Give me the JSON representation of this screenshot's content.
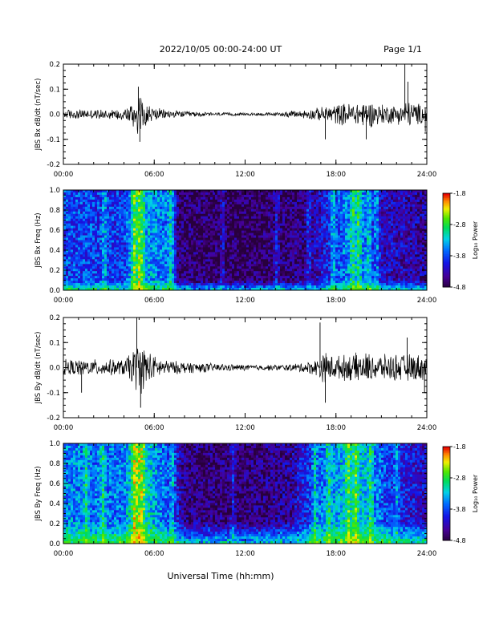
{
  "header": {
    "title": "2022/10/05  00:00-24:00 UT",
    "page": "Page 1/1"
  },
  "footer": {
    "xlabel": "Universal Time (hh:mm)"
  },
  "colorbar": {
    "label": "Log₁₀ Power",
    "ticks": [
      "-1.8",
      "-2.8",
      "-3.8",
      "-4.8"
    ],
    "range": [
      -4.8,
      -1.8
    ],
    "scale": "rainbow (purple=low, red=high)"
  },
  "chart_data": [
    {
      "type": "line",
      "ylabel": "JBS Bx dB/dt (nT/sec)",
      "xlim": [
        0,
        24
      ],
      "x_tick_labels": [
        "00:00",
        "06:00",
        "12:00",
        "18:00",
        "24:00"
      ],
      "ylim": [
        -0.2,
        0.2
      ],
      "y_tick_labels": [
        "0.2",
        "0.1",
        "0.0",
        "-0.1",
        "-0.2"
      ],
      "series": [
        {
          "color": "#000000",
          "envelope": {
            "hours": [
              0,
              2,
              4,
              4.6,
              5.0,
              5.3,
              5.8,
              6.5,
              8,
              10,
              12,
              14,
              16,
              17,
              18,
              19,
              20,
              21,
              22,
              22.7,
              23.2,
              24
            ],
            "amplitude": [
              0.022,
              0.02,
              0.025,
              0.06,
              0.1,
              0.07,
              0.035,
              0.022,
              0.013,
              0.008,
              0.006,
              0.008,
              0.02,
              0.03,
              0.045,
              0.05,
              0.06,
              0.045,
              0.04,
              0.06,
              0.05,
              0.04
            ]
          },
          "spikes": [
            {
              "hour": 4.95,
              "value": 0.11
            },
            {
              "hour": 5.05,
              "value": -0.11
            },
            {
              "hour": 22.55,
              "value": 0.21
            },
            {
              "hour": 22.75,
              "value": 0.13
            },
            {
              "hour": 20.0,
              "value": -0.1
            },
            {
              "hour": 17.3,
              "value": -0.1
            },
            {
              "hour": 23.9,
              "value": -0.07
            }
          ]
        }
      ]
    },
    {
      "type": "heatmap",
      "ylabel": "JBS Bx Freq (Hz)",
      "xlim": [
        0,
        24
      ],
      "x_tick_labels": [
        "00:00",
        "06:00",
        "12:00",
        "18:00",
        "24:00"
      ],
      "ylim": [
        0,
        1.0
      ],
      "y_tick_labels": [
        "1.0",
        "0.8",
        "0.6",
        "0.4",
        "0.2",
        "0.0"
      ],
      "z_unit": "Log10 Power",
      "zlim": [
        -4.8,
        -1.8
      ],
      "background_level": {
        "hours": [
          0,
          4,
          4.6,
          5.0,
          5.5,
          7.2,
          7.6,
          12,
          16,
          17.5,
          18.5,
          19.3,
          20,
          21,
          24
        ],
        "level": [
          -3.8,
          -3.9,
          -3.2,
          -3.1,
          -3.4,
          -3.7,
          -4.6,
          -4.7,
          -4.5,
          -4.0,
          -3.6,
          -3.4,
          -3.6,
          -4.2,
          -4.4
        ]
      },
      "low_frequency_band": {
        "frequency_max": 0.1,
        "peak_level": -1.9
      },
      "bright_columns": [
        2.7,
        4.7,
        5.0,
        5.2,
        7.1,
        10.5,
        14.1,
        16.2,
        17.8,
        19.1,
        19.5,
        20.2,
        20.7
      ]
    },
    {
      "type": "line",
      "ylabel": "JBS By dB/dt (nT/sec)",
      "xlim": [
        0,
        24
      ],
      "x_tick_labels": [
        "00:00",
        "06:00",
        "12:00",
        "18:00",
        "24:00"
      ],
      "ylim": [
        -0.2,
        0.2
      ],
      "y_tick_labels": [
        "0.2",
        "0.1",
        "0.0",
        "-0.1",
        "-0.2"
      ],
      "series": [
        {
          "color": "#000000",
          "envelope": {
            "hours": [
              0,
              2,
              4,
              4.6,
              5.0,
              5.4,
              6.0,
              7,
              9,
              11,
              13,
              15,
              16.5,
              17.3,
              18,
              19,
              20,
              21,
              22,
              23,
              24
            ],
            "amplitude": [
              0.035,
              0.035,
              0.035,
              0.08,
              0.12,
              0.09,
              0.05,
              0.03,
              0.022,
              0.015,
              0.012,
              0.015,
              0.03,
              0.07,
              0.05,
              0.06,
              0.065,
              0.055,
              0.06,
              0.06,
              0.055
            ]
          },
          "spikes": [
            {
              "hour": 4.85,
              "value": 0.2
            },
            {
              "hour": 5.1,
              "value": -0.16
            },
            {
              "hour": 16.95,
              "value": 0.18
            },
            {
              "hour": 17.3,
              "value": -0.14
            },
            {
              "hour": 1.2,
              "value": -0.1
            },
            {
              "hour": 23.85,
              "value": -0.1
            },
            {
              "hour": 22.7,
              "value": 0.12
            }
          ]
        }
      ]
    },
    {
      "type": "heatmap",
      "ylabel": "JBS By Freq (Hz)",
      "xlim": [
        0,
        24
      ],
      "x_tick_labels": [
        "00:00",
        "06:00",
        "12:00",
        "18:00",
        "24:00"
      ],
      "ylim": [
        0,
        1.0
      ],
      "y_tick_labels": [
        "1.0",
        "0.8",
        "0.6",
        "0.4",
        "0.2",
        "0.0"
      ],
      "z_unit": "Log10 Power",
      "zlim": [
        -4.8,
        -1.8
      ],
      "background_level": {
        "hours": [
          0,
          2,
          4,
          4.6,
          5.0,
          5.6,
          6.5,
          7.3,
          8,
          12,
          15,
          17,
          18,
          19,
          20,
          21,
          22,
          24
        ],
        "level": [
          -3.5,
          -3.6,
          -3.6,
          -3.0,
          -2.9,
          -3.2,
          -3.6,
          -3.9,
          -4.5,
          -4.6,
          -4.4,
          -3.6,
          -3.4,
          -3.2,
          -3.3,
          -3.7,
          -4.0,
          -4.2
        ]
      },
      "low_frequency_band": {
        "frequency_max": 0.22,
        "peak_level": -1.9
      },
      "bright_columns": [
        1.5,
        2.6,
        4.7,
        4.95,
        5.2,
        7.2,
        11.2,
        16.6,
        17.5,
        18.8,
        19.3,
        20.3,
        22.0
      ]
    }
  ]
}
